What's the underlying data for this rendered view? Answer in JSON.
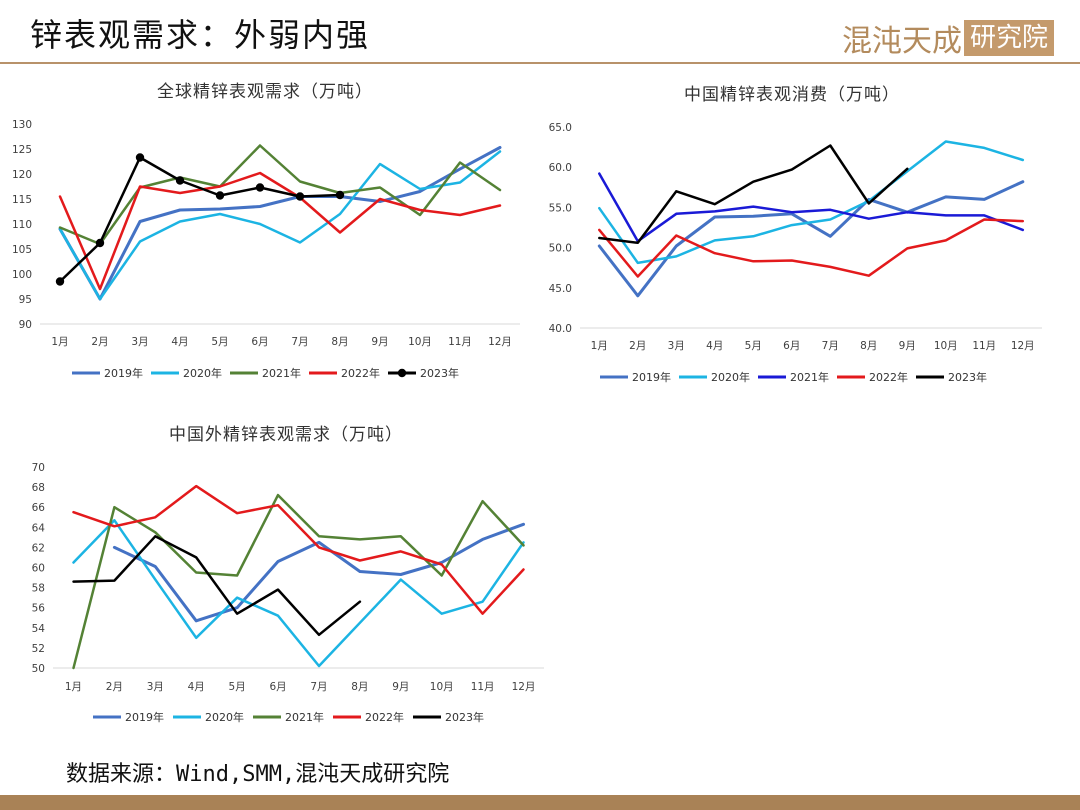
{
  "header": {
    "title": "锌表观需求：外弱内强",
    "logo_part1": "混沌天成",
    "logo_part2": "研究院"
  },
  "footer": {
    "source": "数据来源：Wind,SMM,混沌天成研究院"
  },
  "colors": {
    "rule": "#b8926a",
    "bottom_bar": "#a98256"
  },
  "chart_data": [
    {
      "id": "global",
      "type": "line",
      "title": "全球精锌表观需求（万吨）",
      "categories": [
        "1月",
        "2月",
        "3月",
        "4月",
        "5月",
        "6月",
        "7月",
        "8月",
        "9月",
        "10月",
        "11月",
        "12月"
      ],
      "ylim": [
        90,
        130
      ],
      "yticks": [
        "90",
        "95",
        "100",
        "105",
        "110",
        "115",
        "120",
        "125",
        "130"
      ],
      "legend_position": "bottom",
      "series": [
        {
          "name": "2019年",
          "color": "#4472c4",
          "width": 3,
          "values": [
            109,
            95,
            110.5,
            112.8,
            113,
            113.5,
            115.5,
            115.5,
            114.5,
            116.5,
            121,
            125.3
          ]
        },
        {
          "name": "2020年",
          "color": "#1cb4e3",
          "width": 2.5,
          "values": [
            109,
            95,
            106.5,
            110.5,
            112,
            110,
            106.3,
            112,
            122,
            117,
            118.3,
            124.5
          ]
        },
        {
          "name": "2021年",
          "color": "#548235",
          "width": 2.5,
          "values": [
            109.3,
            106,
            117.3,
            119.3,
            117.5,
            125.7,
            118.5,
            116.2,
            117.3,
            111.8,
            122.3,
            116.8
          ]
        },
        {
          "name": "2022年",
          "color": "#e31a1c",
          "width": 2.5,
          "values": [
            115.5,
            97,
            117.5,
            116.2,
            117.5,
            120.2,
            115.3,
            108.3,
            115,
            112.8,
            111.8,
            113.7
          ]
        },
        {
          "name": "2023年",
          "color": "#000000",
          "width": 2.5,
          "markers": true,
          "values": [
            98.5,
            106.2,
            123.3,
            118.7,
            115.7,
            117.3,
            115.5,
            115.8,
            null,
            null,
            null,
            null
          ]
        }
      ]
    },
    {
      "id": "china",
      "type": "line",
      "title": "中国精锌表观消费（万吨）",
      "categories": [
        "1月",
        "2月",
        "3月",
        "4月",
        "5月",
        "6月",
        "7月",
        "8月",
        "9月",
        "10月",
        "11月",
        "12月"
      ],
      "ylim": [
        40,
        65
      ],
      "yticks": [
        "40.0",
        "45.0",
        "50.0",
        "55.0",
        "60.0",
        "65.0"
      ],
      "legend_position": "bottom",
      "series": [
        {
          "name": "2019年",
          "color": "#4472c4",
          "width": 3,
          "values": [
            50.2,
            44,
            50.2,
            53.8,
            53.9,
            54.2,
            51.4,
            56,
            54.4,
            56.3,
            56,
            58.2
          ]
        },
        {
          "name": "2020年",
          "color": "#1cb4e3",
          "width": 2.5,
          "values": [
            54.9,
            48.1,
            48.9,
            50.9,
            51.4,
            52.8,
            53.5,
            55.8,
            59.5,
            63.2,
            62.4,
            60.9
          ]
        },
        {
          "name": "2021年",
          "color": "#1a1ad6",
          "width": 2.5,
          "values": [
            59.2,
            50.8,
            54.2,
            54.5,
            55.1,
            54.4,
            54.7,
            53.6,
            54.4,
            54,
            54,
            52.2
          ]
        },
        {
          "name": "2022年",
          "color": "#e31a1c",
          "width": 2.5,
          "values": [
            52.2,
            46.4,
            51.5,
            49.3,
            48.3,
            48.4,
            47.6,
            46.5,
            49.9,
            50.9,
            53.5,
            53.3
          ]
        },
        {
          "name": "2023年",
          "color": "#000000",
          "width": 2.5,
          "values": [
            51.2,
            50.6,
            57,
            55.4,
            58.2,
            59.7,
            62.7,
            55.5,
            59.8,
            null,
            null,
            null
          ]
        }
      ]
    },
    {
      "id": "exchina",
      "type": "line",
      "title": "中国外精锌表观需求（万吨）",
      "categories": [
        "1月",
        "2月",
        "3月",
        "4月",
        "5月",
        "6月",
        "7月",
        "8月",
        "9月",
        "10月",
        "11月",
        "12月"
      ],
      "ylim": [
        50,
        70
      ],
      "yticks": [
        "50",
        "52",
        "54",
        "56",
        "58",
        "60",
        "62",
        "64",
        "66",
        "68",
        "70"
      ],
      "legend_position": "bottom",
      "series": [
        {
          "name": "2019年",
          "color": "#4472c4",
          "width": 3,
          "values": [
            null,
            62,
            60.1,
            54.7,
            56,
            60.6,
            62.5,
            59.6,
            59.3,
            60.5,
            62.8,
            64.3
          ]
        },
        {
          "name": "2020年",
          "color": "#1cb4e3",
          "width": 2.5,
          "values": [
            60.5,
            64.7,
            58.8,
            53,
            57,
            55.2,
            50.2,
            54.5,
            58.8,
            55.4,
            56.6,
            62.5
          ]
        },
        {
          "name": "2021年",
          "color": "#548235",
          "width": 2.5,
          "values": [
            50,
            66,
            63.5,
            59.5,
            59.2,
            67.2,
            63.1,
            62.8,
            63.1,
            59.2,
            66.6,
            62.2
          ]
        },
        {
          "name": "2022年",
          "color": "#e31a1c",
          "width": 2.5,
          "values": [
            65.5,
            64.1,
            65,
            68.1,
            65.4,
            66.2,
            62,
            60.7,
            61.6,
            60.3,
            55.4,
            59.8
          ]
        },
        {
          "name": "2023年",
          "color": "#000000",
          "width": 2.5,
          "values": [
            58.6,
            58.7,
            63.1,
            61,
            55.4,
            57.8,
            53.3,
            56.6,
            null,
            null,
            null,
            null
          ]
        }
      ]
    }
  ]
}
